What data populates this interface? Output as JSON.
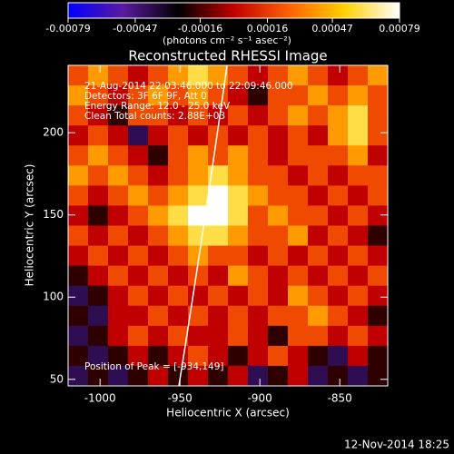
{
  "chart_data": {
    "type": "heatmap",
    "title": "Reconstructed RHESSI Image",
    "xlabel": "Heliocentric X (arcsec)",
    "ylabel": "Heliocentric Y (arcsec)",
    "colorbar_label": "(photons cm⁻² s⁻¹ asec⁻²)",
    "annotations": [
      "21-Aug-2014 22:03:46.000 to 22:09:46.000",
      "Detectors: 3F 6F 9F, Att 0",
      "Energy Range: 12.0 - 25.0 keV",
      "Clean     Total counts: 2.88E+03"
    ],
    "peak_label": "Position of Peak = [-934,149]",
    "footer": "12-Nov-2014 18:25",
    "xlim": [
      -1020,
      -820
    ],
    "xticks": [
      -1000,
      -950,
      -900,
      -850
    ],
    "ylim": [
      46,
      241
    ],
    "yticks": [
      50,
      100,
      150,
      200
    ],
    "clim": [
      -0.00079,
      0.00079
    ],
    "cticks": [
      -0.00079,
      -0.00047,
      -0.00016,
      0.00016,
      0.00047,
      0.00079
    ],
    "colormap": [
      "#0000ff",
      "#5a1aa0",
      "#000000",
      "#c00000",
      "#ff6000",
      "#ffd000",
      "#ffffff"
    ],
    "z": [
      [
        0.0002,
        0.0004,
        0.0002,
        0,
        0.0002,
        0.0004,
        0.0006,
        0.0004,
        0.0002,
        0,
        0.0002,
        0.0004,
        0.0002,
        0,
        0.0002,
        0.0004
      ],
      [
        0.0004,
        0.0002,
        0,
        0.0002,
        0.0004,
        0.0002,
        0.0004,
        0.0002,
        0,
        -0.0002,
        0.0002,
        0.0002,
        0.0004,
        0.0002,
        0.0004,
        0.0002
      ],
      [
        0.0002,
        0,
        -0.0002,
        0.0002,
        0.0002,
        0,
        0.0002,
        0,
        0.0002,
        0,
        0.0002,
        0.0004,
        0.0002,
        0.0004,
        0.0006,
        0.0002
      ],
      [
        0,
        0.0002,
        0,
        -0.0004,
        0,
        0.0002,
        0,
        0.0002,
        0,
        0.0002,
        0,
        0.0002,
        0,
        0.0004,
        0.0006,
        0.0002
      ],
      [
        0.0002,
        0.0004,
        0.0002,
        0,
        -0.0002,
        0.0002,
        0.0004,
        0.0002,
        0.0004,
        0.0002,
        0,
        0.0002,
        0.0002,
        0.0002,
        0.0004,
        0
      ],
      [
        0.0004,
        0.0002,
        0.0004,
        0.0002,
        0,
        0.0002,
        0.0004,
        0.0006,
        0.0004,
        0.0002,
        0.0002,
        0,
        0.0002,
        0,
        0.0002,
        0.0002
      ],
      [
        0.0002,
        0,
        0.0002,
        0.0004,
        0.0002,
        0.0004,
        0.0006,
        0.00079,
        0.0006,
        0.0004,
        0.0002,
        0.0002,
        0,
        0.0002,
        0,
        0.0002
      ],
      [
        0,
        -0.0002,
        0,
        0.0002,
        0.0004,
        0.0006,
        0.00079,
        0.00079,
        0.0006,
        0.0002,
        0.0004,
        0.0002,
        0.0002,
        0,
        0.0002,
        0
      ],
      [
        0.0002,
        0,
        0.0002,
        0,
        0.0002,
        0.0004,
        0.0006,
        0.0006,
        0.0004,
        0.0002,
        0.0002,
        0.0004,
        0,
        0.0002,
        0,
        -0.0002
      ],
      [
        0,
        0.0002,
        0,
        0.0002,
        0,
        0.0002,
        0.0004,
        0.0002,
        0.0002,
        0,
        0.0002,
        0,
        0.0002,
        0,
        0.0002,
        0
      ],
      [
        -0.0002,
        0,
        0.0002,
        0,
        0.0002,
        0,
        0.0002,
        0,
        0.0004,
        0.0002,
        0,
        0.0002,
        0,
        0.0002,
        0,
        0.0002
      ],
      [
        -0.0004,
        -0.0002,
        0,
        0.0002,
        0,
        0.0002,
        0,
        0.0002,
        0,
        0.0002,
        0,
        0.0004,
        0.0002,
        0,
        0.0002,
        0
      ],
      [
        -0.0002,
        -0.0004,
        0,
        0,
        0.0002,
        0,
        0.0002,
        0,
        0.0002,
        0,
        0.0002,
        0.0002,
        0.0004,
        0.0002,
        0,
        -0.0002
      ],
      [
        -0.0004,
        -0.0002,
        0,
        0.0002,
        0,
        0.0002,
        0,
        0,
        0.0002,
        0,
        -0.0002,
        0.0002,
        0.0002,
        0,
        0.0002,
        0
      ],
      [
        -0.0002,
        -0.0004,
        -0.0002,
        0,
        -0.0002,
        0,
        0.0002,
        0,
        -0.0002,
        0,
        0.0002,
        0,
        -0.0002,
        -0.0004,
        0,
        -0.0002
      ],
      [
        -0.0004,
        -0.0002,
        -0.0004,
        -0.0002,
        0,
        -0.0002,
        0,
        -0.0002,
        0,
        -0.0004,
        -0.0002,
        0,
        -0.0004,
        -0.0002,
        -0.0004,
        -0.0002
      ]
    ]
  }
}
